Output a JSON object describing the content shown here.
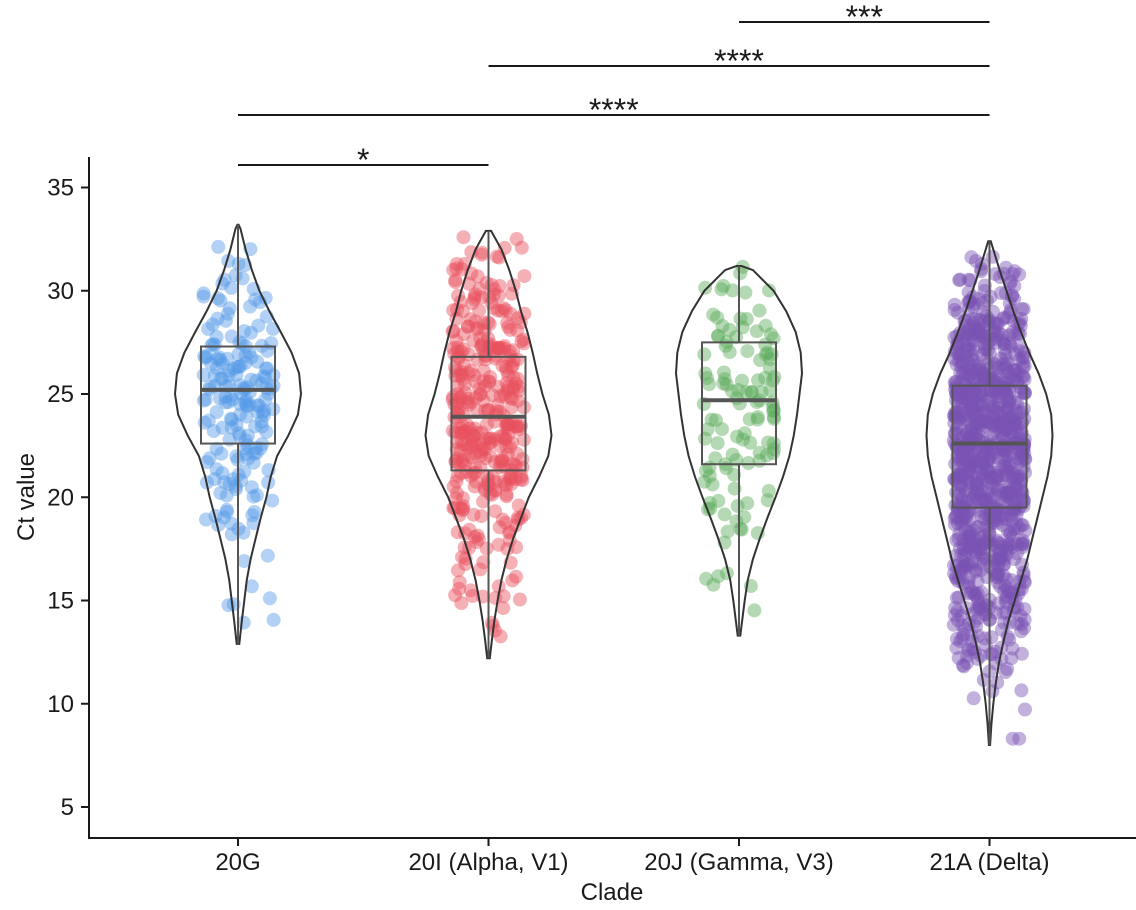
{
  "chart_data": {
    "type": "violin",
    "xlabel": "Clade",
    "ylabel": "Ct value",
    "ylim": [
      4,
      36.5
    ],
    "yticks": [
      5,
      10,
      15,
      20,
      25,
      30,
      35
    ],
    "grid": false,
    "legend": "none",
    "categories": [
      "20G",
      "20I (Alpha, V1)",
      "20J (Gamma, V3)",
      "21A (Delta)"
    ],
    "series": [
      {
        "category": "20G",
        "color": "#5599e6",
        "n_points": 190,
        "seed": 11,
        "min": 12.9,
        "q1": 22.6,
        "median": 25.2,
        "q3": 27.3,
        "max": 33.2,
        "density": [
          [
            12.9,
            0.02
          ],
          [
            14,
            0.06
          ],
          [
            15,
            0.1
          ],
          [
            16,
            0.14
          ],
          [
            17,
            0.2
          ],
          [
            18,
            0.28
          ],
          [
            19,
            0.36
          ],
          [
            20,
            0.45
          ],
          [
            21,
            0.52
          ],
          [
            22,
            0.62
          ],
          [
            23,
            0.8
          ],
          [
            24,
            0.95
          ],
          [
            25,
            1.0
          ],
          [
            26,
            0.97
          ],
          [
            27,
            0.85
          ],
          [
            28,
            0.68
          ],
          [
            29,
            0.5
          ],
          [
            30,
            0.34
          ],
          [
            31,
            0.22
          ],
          [
            32,
            0.12
          ],
          [
            33,
            0.04
          ],
          [
            33.2,
            0.01
          ]
        ]
      },
      {
        "category": "20I (Alpha, V1)",
        "color": "#e8505e",
        "n_points": 380,
        "seed": 23,
        "min": 12.2,
        "q1": 21.3,
        "median": 23.9,
        "q3": 26.8,
        "max": 32.9,
        "density": [
          [
            12.2,
            0.02
          ],
          [
            13,
            0.05
          ],
          [
            14,
            0.09
          ],
          [
            15,
            0.14
          ],
          [
            16,
            0.2
          ],
          [
            17,
            0.28
          ],
          [
            18,
            0.38
          ],
          [
            19,
            0.5
          ],
          [
            20,
            0.62
          ],
          [
            21,
            0.78
          ],
          [
            22,
            0.92
          ],
          [
            23,
            0.97
          ],
          [
            24,
            0.93
          ],
          [
            25,
            0.83
          ],
          [
            26,
            0.75
          ],
          [
            27,
            0.68
          ],
          [
            28,
            0.6
          ],
          [
            29,
            0.5
          ],
          [
            30,
            0.42
          ],
          [
            31,
            0.32
          ],
          [
            32,
            0.2
          ],
          [
            32.9,
            0.04
          ]
        ]
      },
      {
        "category": "20J (Gamma, V3)",
        "color": "#5aaa5a",
        "n_points": 120,
        "seed": 37,
        "min": 13.3,
        "q1": 21.6,
        "median": 24.7,
        "q3": 27.5,
        "max": 31.2,
        "density": [
          [
            13.3,
            0.02
          ],
          [
            14,
            0.05
          ],
          [
            15,
            0.09
          ],
          [
            16,
            0.14
          ],
          [
            17,
            0.22
          ],
          [
            18,
            0.33
          ],
          [
            19,
            0.45
          ],
          [
            20,
            0.58
          ],
          [
            21,
            0.7
          ],
          [
            22,
            0.8
          ],
          [
            23,
            0.87
          ],
          [
            24,
            0.92
          ],
          [
            25,
            0.96
          ],
          [
            26,
            1.0
          ],
          [
            27,
            0.98
          ],
          [
            28,
            0.9
          ],
          [
            29,
            0.75
          ],
          [
            30,
            0.55
          ],
          [
            31,
            0.22
          ],
          [
            31.2,
            0.04
          ]
        ]
      },
      {
        "category": "21A (Delta)",
        "color": "#7a52b3",
        "n_points": 950,
        "seed": 53,
        "min": 8.0,
        "q1": 19.5,
        "median": 22.6,
        "q3": 25.4,
        "max": 32.4,
        "density": [
          [
            8,
            0.01
          ],
          [
            9,
            0.03
          ],
          [
            10,
            0.06
          ],
          [
            11,
            0.1
          ],
          [
            12,
            0.15
          ],
          [
            13,
            0.22
          ],
          [
            14,
            0.3
          ],
          [
            15,
            0.4
          ],
          [
            16,
            0.5
          ],
          [
            17,
            0.6
          ],
          [
            18,
            0.68
          ],
          [
            19,
            0.76
          ],
          [
            20,
            0.84
          ],
          [
            21,
            0.92
          ],
          [
            22,
            0.98
          ],
          [
            23,
            1.0
          ],
          [
            24,
            0.98
          ],
          [
            25,
            0.9
          ],
          [
            26,
            0.78
          ],
          [
            27,
            0.63
          ],
          [
            28,
            0.5
          ],
          [
            29,
            0.38
          ],
          [
            30,
            0.27
          ],
          [
            31,
            0.16
          ],
          [
            32,
            0.06
          ],
          [
            32.4,
            0.02
          ]
        ]
      }
    ],
    "comparisons": [
      {
        "from": 0,
        "to": 1,
        "label": "*",
        "level": 0
      },
      {
        "from": 0,
        "to": 3,
        "label": "****",
        "level": 1
      },
      {
        "from": 1,
        "to": 3,
        "label": "****",
        "level": 2
      },
      {
        "from": 2,
        "to": 3,
        "label": "***",
        "level": 3
      }
    ]
  }
}
